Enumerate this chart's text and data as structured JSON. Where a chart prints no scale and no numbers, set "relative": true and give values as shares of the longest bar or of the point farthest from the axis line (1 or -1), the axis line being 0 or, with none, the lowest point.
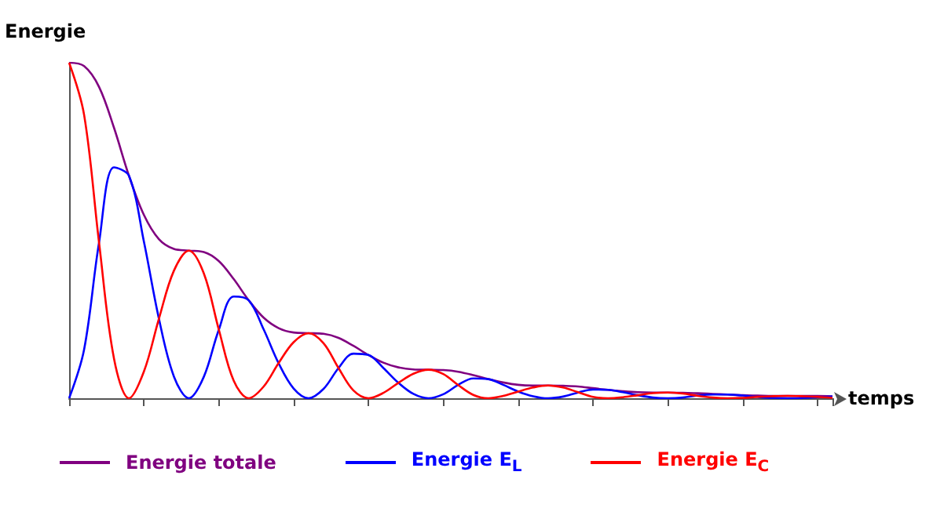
{
  "chart_data": {
    "type": "line",
    "xlabel": "temps",
    "ylabel": "Energie",
    "relative": true,
    "legend": "bottom",
    "grid": false,
    "categories": [
      null,
      null,
      null,
      null,
      null,
      null,
      null,
      null,
      null,
      null,
      null,
      null,
      null,
      null,
      null,
      null,
      null,
      null,
      null,
      null,
      null,
      null,
      null,
      null,
      null,
      null,
      null,
      null,
      null,
      null,
      null,
      null,
      null,
      null,
      null,
      null,
      null,
      null,
      null,
      null,
      null,
      null,
      null,
      null,
      null,
      null,
      null,
      null,
      null,
      null,
      null,
      null
    ],
    "series": [
      {
        "name": "Energie totale",
        "color": "#800080",
        "values": [
          1,
          0.99,
          0.928,
          0.806,
          0.663,
          0.546,
          0.474,
          0.445,
          0.44,
          0.436,
          0.409,
          0.355,
          0.292,
          0.24,
          0.209,
          0.196,
          0.194,
          0.192,
          0.18,
          0.156,
          0.129,
          0.106,
          0.092,
          0.086,
          0.085,
          0.084,
          0.079,
          0.069,
          0.057,
          0.047,
          0.04,
          0.038,
          0.038,
          0.037,
          0.035,
          0.03,
          0.025,
          0.021,
          0.018,
          0.017,
          0.017,
          0.016,
          0.015,
          0.013,
          0.011,
          0.009,
          0.008,
          0.007,
          0.007,
          0.007,
          0.007,
          0.006
        ]
      },
      {
        "name": "Energie E$_{L}$",
        "color": "#0000ff",
        "values": [
          0,
          0.145,
          0.464,
          0.688,
          0.663,
          0.466,
          0.237,
          0.065,
          0,
          0.064,
          0.204,
          0.303,
          0.292,
          0.205,
          0.104,
          0.029,
          0,
          0.028,
          0.09,
          0.133,
          0.129,
          0.09,
          0.046,
          0.013,
          0,
          0.012,
          0.04,
          0.059,
          0.057,
          0.04,
          0.02,
          0.006,
          0,
          0.005,
          0.017,
          0.026,
          0.025,
          0.018,
          0.009,
          0.002,
          0,
          0.002,
          0.008,
          0.011,
          0.011,
          0.008,
          0.004,
          0.001,
          0,
          0.001,
          0.003,
          0.005
        ]
      },
      {
        "name": "Energie E$_{C}$",
        "color": "#ff0000",
        "values": [
          1,
          0.845,
          0.464,
          0.118,
          0,
          0.08,
          0.237,
          0.38,
          0.44,
          0.372,
          0.205,
          0.052,
          0,
          0.035,
          0.105,
          0.167,
          0.194,
          0.164,
          0.09,
          0.023,
          0,
          0.016,
          0.046,
          0.073,
          0.085,
          0.072,
          0.039,
          0.01,
          0,
          0.007,
          0.02,
          0.032,
          0.038,
          0.032,
          0.018,
          0.004,
          0,
          0.003,
          0.009,
          0.015,
          0.017,
          0.014,
          0.007,
          0.002,
          0,
          0.001,
          0.004,
          0.006,
          0.007,
          0.006,
          0.004,
          0.001
        ]
      }
    ]
  }
}
